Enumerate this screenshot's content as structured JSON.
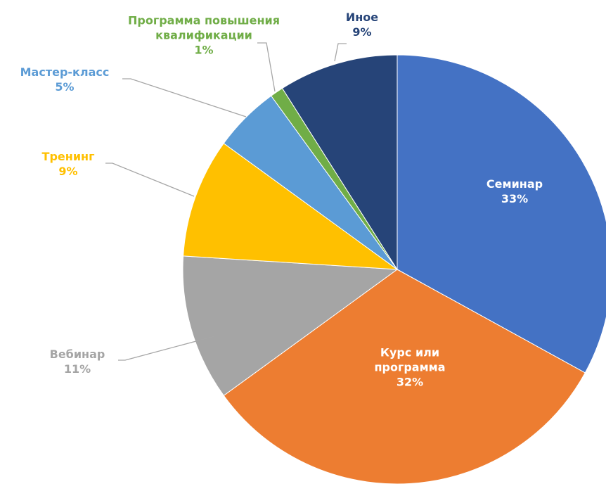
{
  "chart_data": {
    "type": "pie",
    "categories": [
      "Семинар",
      "Курс или программа",
      "Вебинар",
      "Тренинг",
      "Мастер-класс",
      "Программа повышения квалификации",
      "Иное"
    ],
    "values": [
      33,
      32,
      11,
      9,
      5,
      1,
      9
    ],
    "value_labels": [
      "33%",
      "32%",
      "11%",
      "9%",
      "5%",
      "1%",
      "9%"
    ],
    "colors": [
      "#4472c4",
      "#ed7d31",
      "#a5a5a5",
      "#ffc000",
      "#5b9bd5",
      "#70ad47",
      "#264478"
    ],
    "label_colors": [
      "#ffffff",
      "#ffffff",
      "#a5a5a5",
      "#ffc000",
      "#5b9bd5",
      "#70ad47",
      "#264478"
    ]
  }
}
